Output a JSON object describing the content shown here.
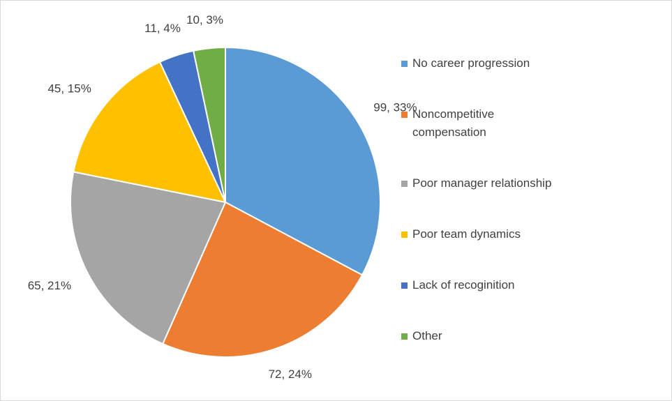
{
  "chart_data": {
    "type": "pie",
    "categories": [
      "No career progression",
      "Noncompetitive compensation",
      "Poor manager relationship",
      "Poor team dynamics",
      "Lack of recoginition",
      "Other"
    ],
    "values": [
      99,
      72,
      65,
      45,
      11,
      10
    ],
    "value_labels": [
      "99, 33%",
      "72, 24%",
      "65, 21%",
      "45, 15%",
      "11, 4%",
      "10, 3%"
    ],
    "colors": [
      "#5b9bd5",
      "#ed7d31",
      "#a5a5a5",
      "#ffc000",
      "#4472c4",
      "#70ad47"
    ],
    "legend": "right"
  }
}
